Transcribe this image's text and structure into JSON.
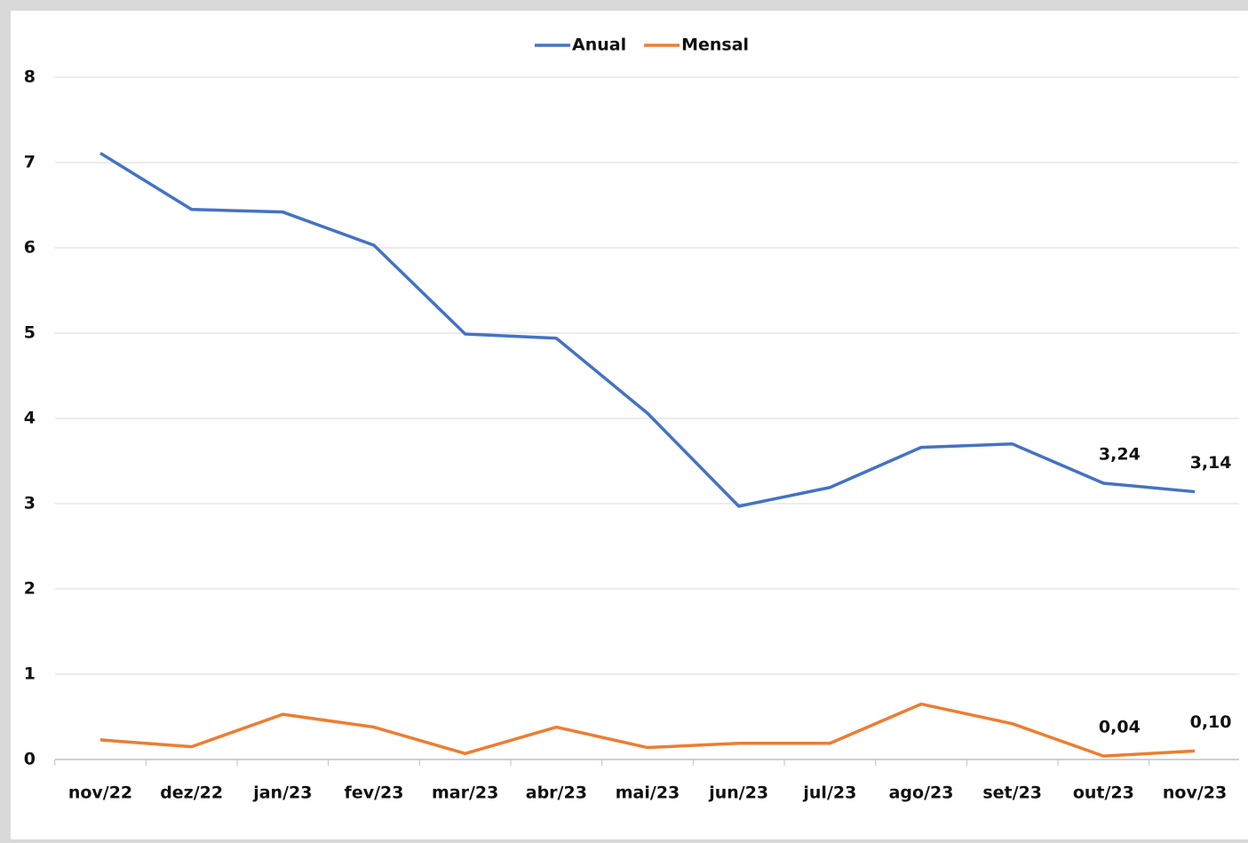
{
  "chart_data": {
    "type": "line",
    "categories": [
      "nov/22",
      "dez/22",
      "jan/23",
      "fev/23",
      "mar/23",
      "abr/23",
      "mai/23",
      "jun/23",
      "jul/23",
      "ago/23",
      "set/23",
      "out/23",
      "nov/23"
    ],
    "series": [
      {
        "name": "Anual",
        "color": "#4472c4",
        "values": [
          7.11,
          6.45,
          6.42,
          6.03,
          4.99,
          4.94,
          4.06,
          2.97,
          3.19,
          3.66,
          3.7,
          3.24,
          3.14
        ],
        "value_labels": [
          null,
          null,
          null,
          null,
          null,
          null,
          null,
          null,
          null,
          null,
          null,
          "3,24",
          "3,14"
        ]
      },
      {
        "name": "Mensal",
        "color": "#ed7d31",
        "values": [
          0.23,
          0.15,
          0.53,
          0.38,
          0.07,
          0.38,
          0.14,
          0.19,
          0.19,
          0.65,
          0.42,
          0.04,
          0.1
        ],
        "value_labels": [
          null,
          null,
          null,
          null,
          null,
          null,
          null,
          null,
          null,
          null,
          null,
          "0,04",
          "0,10"
        ]
      }
    ],
    "ylim": [
      0,
      8
    ],
    "yticks": [
      0,
      1,
      2,
      3,
      4,
      5,
      6,
      7,
      8
    ],
    "grid": true,
    "legend": "top"
  }
}
